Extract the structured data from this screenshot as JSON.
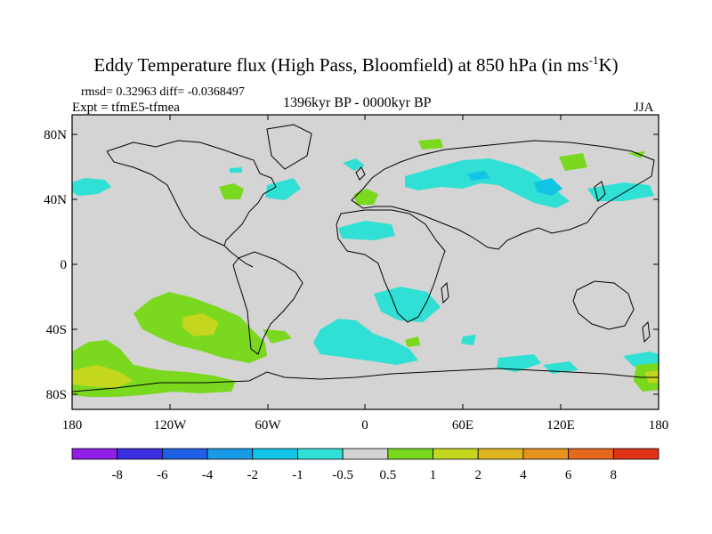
{
  "title": {
    "main": "Eddy Temperature flux (High Pass, Bloomfield) at 850 hPa (in ms",
    "exp": "-1",
    "tail": "K)"
  },
  "stats": "rmsd= 0.32963 diff= -0.0368497",
  "experiment": "Expt = tfmE5-tfmea",
  "period": "1396kyr BP - 0000kyr BP",
  "season": "JJA",
  "map": {
    "projection": "cylindrical equidistant",
    "lon_range": [
      -180,
      180
    ],
    "lat_range": [
      -90,
      90
    ],
    "x_ticks": [
      "180",
      "120W",
      "60W",
      "0",
      "60E",
      "120E",
      "180"
    ],
    "y_ticks": [
      "80N",
      "40N",
      "0",
      "40S",
      "80S"
    ],
    "background_color": "#d4d4d4"
  },
  "colorbar": {
    "labels": [
      "-8",
      "-6",
      "-4",
      "-2",
      "-1",
      "-0.5",
      "0.5",
      "1",
      "2",
      "4",
      "6",
      "8"
    ],
    "colors": [
      "#8f1ee6",
      "#3a2ee0",
      "#1f5fe6",
      "#1a9ae6",
      "#12c4e6",
      "#30e0d4",
      "#d4d4d4",
      "#7ad81e",
      "#c4d61e",
      "#e0b41e",
      "#e6921e",
      "#e6681e",
      "#e03214"
    ]
  },
  "field_regions": [
    {
      "name": "n-pacific-cyan",
      "level": "-1 to -0.5",
      "color": "#30e0d4"
    },
    {
      "name": "great-lakes-green",
      "level": "0.5 to 1",
      "color": "#7ad81e"
    },
    {
      "name": "south-pacific-green",
      "level": "0.5 to 1",
      "color": "#7ad81e"
    },
    {
      "name": "south-pacific-yellow",
      "level": "1 to 2",
      "color": "#c4d61e"
    },
    {
      "name": "southern-ocean-cyan",
      "level": "-1 to -0.5",
      "color": "#30e0d4"
    },
    {
      "name": "asia-cyan",
      "level": "-1 to -0.5",
      "color": "#30e0d4"
    },
    {
      "name": "asia-blue",
      "level": "-2 to -1",
      "color": "#12c4e6"
    }
  ]
}
